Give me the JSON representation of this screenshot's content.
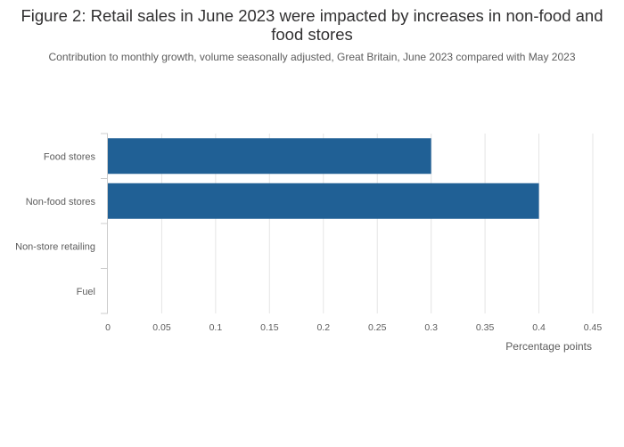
{
  "chart_data": {
    "type": "bar",
    "orientation": "horizontal",
    "title": "Figure 2: Retail sales in June 2023 were impacted by increases in non-food and food stores",
    "subtitle": "Contribution to monthly growth, volume seasonally adjusted, Great Britain, June 2023 compared with May 2023",
    "categories": [
      "Food stores",
      "Non-food stores",
      "Non-store retailing",
      "Fuel"
    ],
    "values": [
      0.3,
      0.4,
      0.0,
      0.0
    ],
    "xlabel": "Percentage points",
    "ylabel": "",
    "xlim": [
      0,
      0.45
    ],
    "xticks": [
      "0",
      "0.05",
      "0.1",
      "0.15",
      "0.2",
      "0.25",
      "0.3",
      "0.35",
      "0.4",
      "0.45"
    ],
    "grid": true,
    "colors": {
      "bar": "#206095",
      "grid": "#e5e5e5",
      "axis": "#cccccc",
      "text": "#5c5c5c",
      "title": "#323132"
    }
  }
}
